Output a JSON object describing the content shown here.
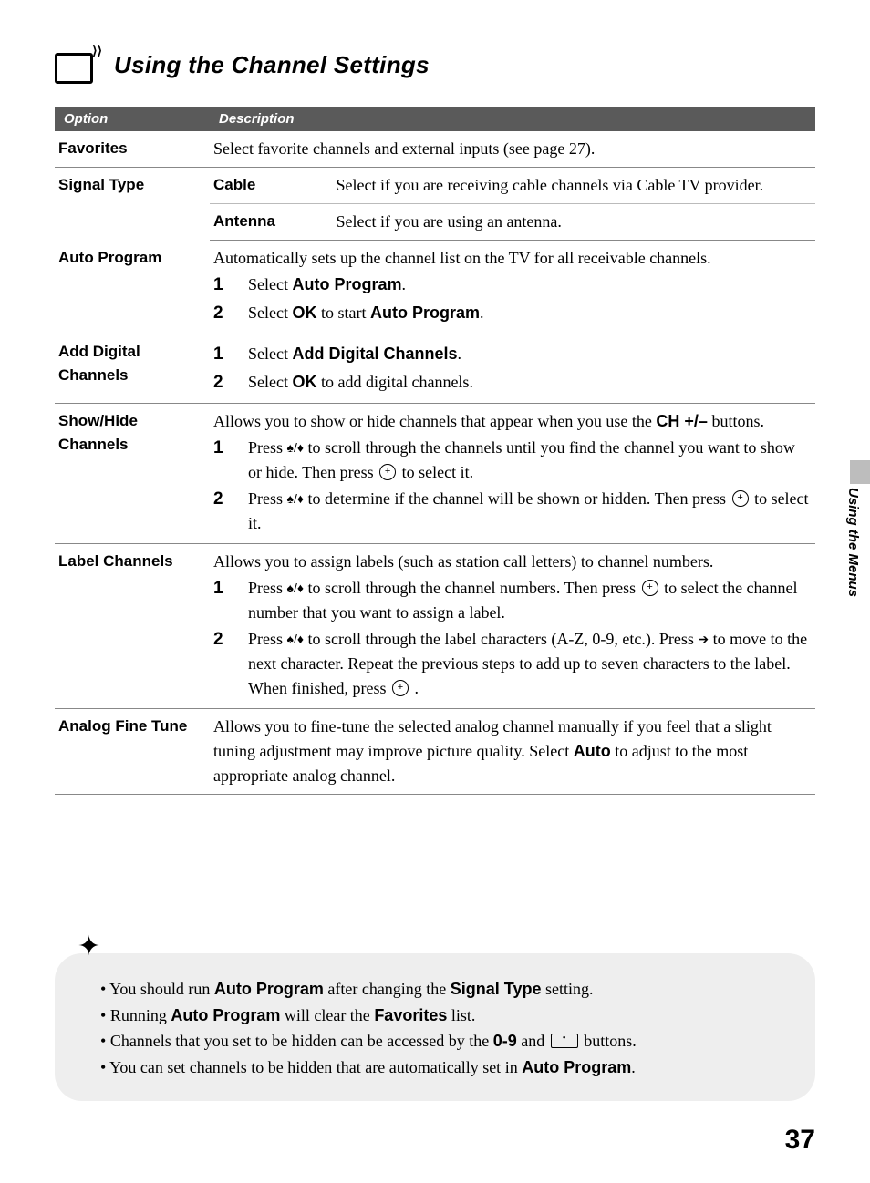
{
  "page": {
    "title": "Using the Channel Settings",
    "side_tab": "Using the Menus",
    "page_number": "37"
  },
  "table": {
    "headers": {
      "option": "Option",
      "description": "Description"
    },
    "favorites": {
      "label": "Favorites",
      "desc": "Select favorite channels and external inputs (see page 27)."
    },
    "signal": {
      "label": "Signal Type",
      "cable_label": "Cable",
      "cable_desc": "Select if you are receiving cable channels via Cable TV provider.",
      "antenna_label": "Antenna",
      "antenna_desc": "Select if you are using an antenna."
    },
    "autoprog": {
      "label": "Auto Program",
      "intro": "Automatically sets up the channel list on the TV for all receivable channels.",
      "s1a": "Select ",
      "s1b": "Auto Program",
      "s1c": ".",
      "s2a": "Select ",
      "s2b": "OK",
      "s2c": " to start ",
      "s2d": "Auto Program",
      "s2e": "."
    },
    "adddigital": {
      "label": "Add Digital Channels",
      "s1a": "Select ",
      "s1b": "Add Digital Channels",
      "s1c": ".",
      "s2a": "Select ",
      "s2b": "OK",
      "s2c": " to add digital channels."
    },
    "showhide": {
      "label": "Show/Hide Channels",
      "intro_a": "Allows you to show or hide channels that appear when you use the ",
      "intro_b": "CH +/–",
      "intro_c": " buttons.",
      "s1a": "Press ",
      "s1b": " to scroll through the channels until you find the channel you want to show or hide. Then press ",
      "s1c": " to select it.",
      "s2a": "Press ",
      "s2b": " to determine if the channel will be shown or hidden. Then press ",
      "s2c": " to select it."
    },
    "labelch": {
      "label": "Label Channels",
      "intro": "Allows you to assign labels (such as station call letters) to channel numbers.",
      "s1a": "Press ",
      "s1b": " to scroll through the channel numbers. Then press ",
      "s1c": " to select the channel number that you want to assign a label.",
      "s2a": "Press ",
      "s2b": " to scroll through the label characters (A-Z, 0-9, etc.). Press ",
      "s2c": " to move to the next character. Repeat the previous steps to add up to seven characters to the label. When finished, press ",
      "s2d": " ."
    },
    "analog": {
      "label": "Analog Fine Tune",
      "d1": "Allows you to fine-tune the selected analog channel manually if you feel that a slight tuning adjustment may improve picture quality. Select ",
      "d2": "Auto",
      "d3": " to adjust to the most appropriate analog channel."
    }
  },
  "tips": {
    "t1a": "You should run ",
    "t1b": "Auto Program",
    "t1c": " after changing the ",
    "t1d": "Signal Type",
    "t1e": " setting.",
    "t2a": "Running ",
    "t2b": "Auto Program",
    "t2c": " will clear the ",
    "t2d": "Favorites",
    "t2e": " list.",
    "t3a": "Channels that you set to be hidden can be accessed by the ",
    "t3b": "0-9",
    "t3c": " and ",
    "t3d": " buttons.",
    "t4a": "You can set channels to be hidden that are automatically set in ",
    "t4b": "Auto Program",
    "t4c": "."
  },
  "glyphs": {
    "updown": "♦/♦",
    "right": "➔"
  }
}
